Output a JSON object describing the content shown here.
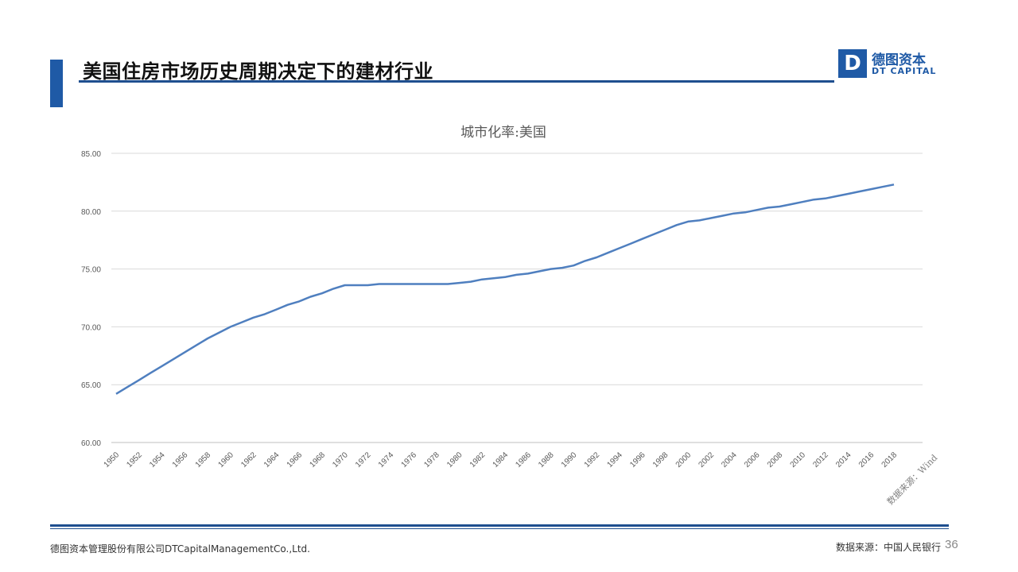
{
  "header": {
    "title": "美国住房市场历史周期决定下的建材行业",
    "accent_color": "#1f5aa6"
  },
  "logo": {
    "mark": "D",
    "cn": "德图资本",
    "en": "DT CAPITAL"
  },
  "chart_data": {
    "type": "line",
    "title": "城市化率:美国",
    "source_note": "数据来源：Wind",
    "xlabel": "",
    "ylabel": "",
    "ylim": [
      60,
      85
    ],
    "yticks": [
      "60.00",
      "65.00",
      "70.00",
      "75.00",
      "80.00",
      "85.00"
    ],
    "grid": true,
    "line_color": "#4f7fbf",
    "x": [
      1950,
      1951,
      1952,
      1953,
      1954,
      1955,
      1956,
      1957,
      1958,
      1959,
      1960,
      1961,
      1962,
      1963,
      1964,
      1965,
      1966,
      1967,
      1968,
      1969,
      1970,
      1971,
      1972,
      1973,
      1974,
      1975,
      1976,
      1977,
      1978,
      1979,
      1980,
      1981,
      1982,
      1983,
      1984,
      1985,
      1986,
      1987,
      1988,
      1989,
      1990,
      1991,
      1992,
      1993,
      1994,
      1995,
      1996,
      1997,
      1998,
      1999,
      2000,
      2001,
      2002,
      2003,
      2004,
      2005,
      2006,
      2007,
      2008,
      2009,
      2010,
      2011,
      2012,
      2013,
      2014,
      2015,
      2016,
      2017,
      2018
    ],
    "series": [
      {
        "values": [
          64.2,
          64.8,
          65.4,
          66.0,
          66.6,
          67.2,
          67.8,
          68.4,
          69.0,
          69.5,
          70.0,
          70.4,
          70.8,
          71.1,
          71.5,
          71.9,
          72.2,
          72.6,
          72.9,
          73.3,
          73.6,
          73.6,
          73.6,
          73.7,
          73.7,
          73.7,
          73.7,
          73.7,
          73.7,
          73.7,
          73.8,
          73.9,
          74.1,
          74.2,
          74.3,
          74.5,
          74.6,
          74.8,
          75.0,
          75.1,
          75.3,
          75.7,
          76.0,
          76.4,
          76.8,
          77.2,
          77.6,
          78.0,
          78.4,
          78.8,
          79.1,
          79.2,
          79.4,
          79.6,
          79.8,
          79.9,
          80.1,
          80.3,
          80.4,
          80.6,
          80.8,
          81.0,
          81.1,
          81.3,
          81.5,
          81.7,
          81.9,
          82.1,
          82.3
        ]
      }
    ]
  },
  "footer": {
    "company": "德图资本管理股份有限公司DTCapitalManagementCo.,Ltd.",
    "source": "数据来源：中国人民银行",
    "page": "36"
  }
}
